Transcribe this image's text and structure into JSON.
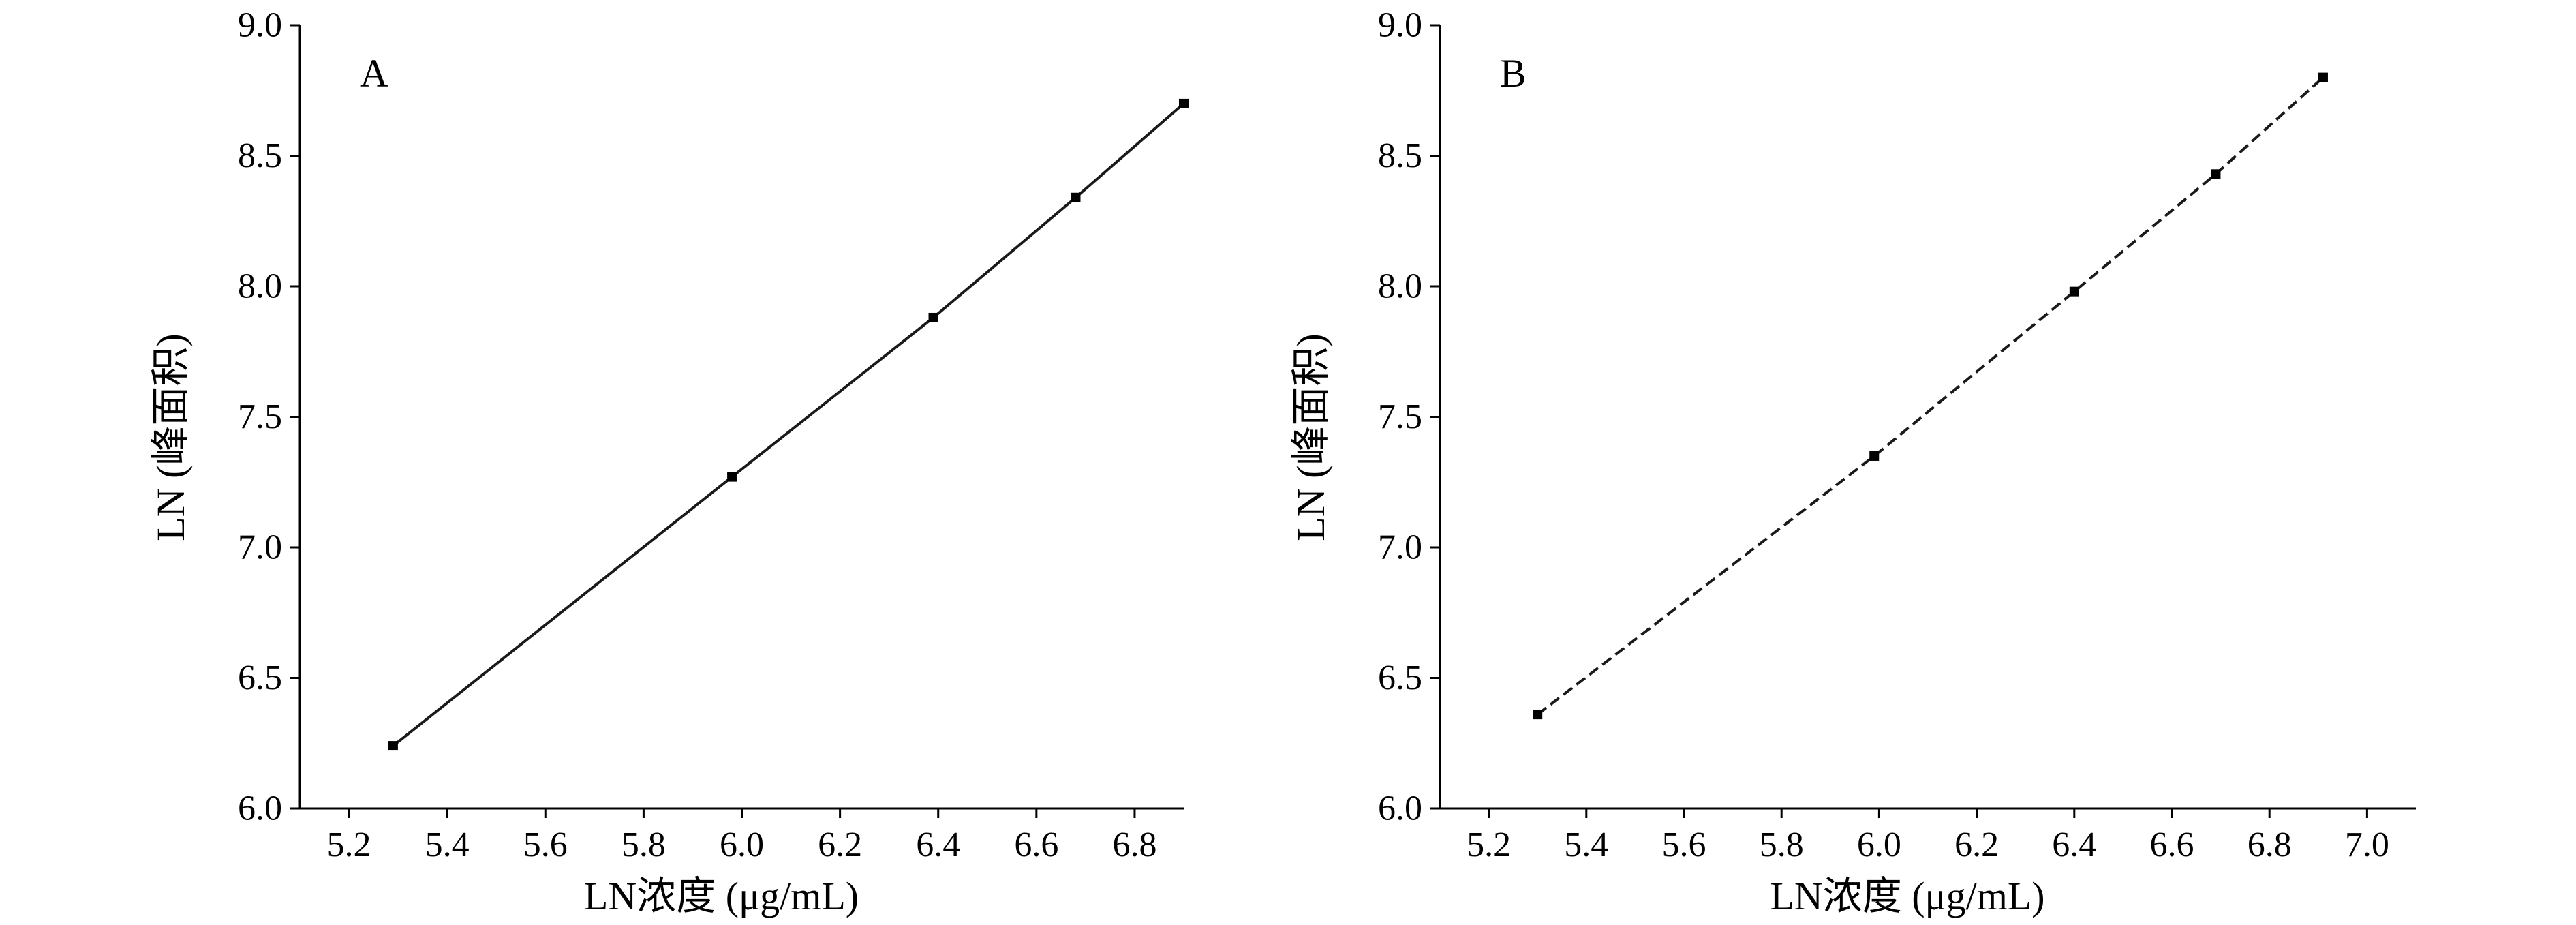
{
  "chart_data": [
    {
      "type": "line",
      "panel_label": "A",
      "xlabel": "LN浓度 (μg/mL)",
      "ylabel": "LN (峰面积)",
      "xlim": [
        5.1,
        6.9
      ],
      "ylim": [
        6.0,
        9.0
      ],
      "xticks": [
        "5.2",
        "5.4",
        "5.6",
        "5.8",
        "6.0",
        "6.2",
        "6.4",
        "6.6",
        "6.8"
      ],
      "yticks": [
        "6.0",
        "6.5",
        "7.0",
        "7.5",
        "8.0",
        "8.5",
        "9.0"
      ],
      "line_style": "solid",
      "series": [
        {
          "x": [
            5.29,
            5.98,
            6.39,
            6.68,
            6.9
          ],
          "y": [
            6.24,
            7.27,
            7.88,
            8.34,
            8.7
          ]
        }
      ]
    },
    {
      "type": "line",
      "panel_label": "B",
      "xlabel": "LN浓度 (μg/mL)",
      "ylabel": "LN (峰面积)",
      "xlim": [
        5.1,
        7.1
      ],
      "ylim": [
        6.0,
        9.0
      ],
      "xticks": [
        "5.2",
        "5.4",
        "5.6",
        "5.8",
        "6.0",
        "6.2",
        "6.4",
        "6.6",
        "6.8",
        "7.0"
      ],
      "yticks": [
        "6.0",
        "6.5",
        "7.0",
        "7.5",
        "8.0",
        "8.5",
        "9.0"
      ],
      "line_style": "dashed",
      "series": [
        {
          "x": [
            5.3,
            5.99,
            6.4,
            6.69,
            6.91
          ],
          "y": [
            6.36,
            7.35,
            7.98,
            8.43,
            8.8
          ]
        }
      ]
    }
  ]
}
